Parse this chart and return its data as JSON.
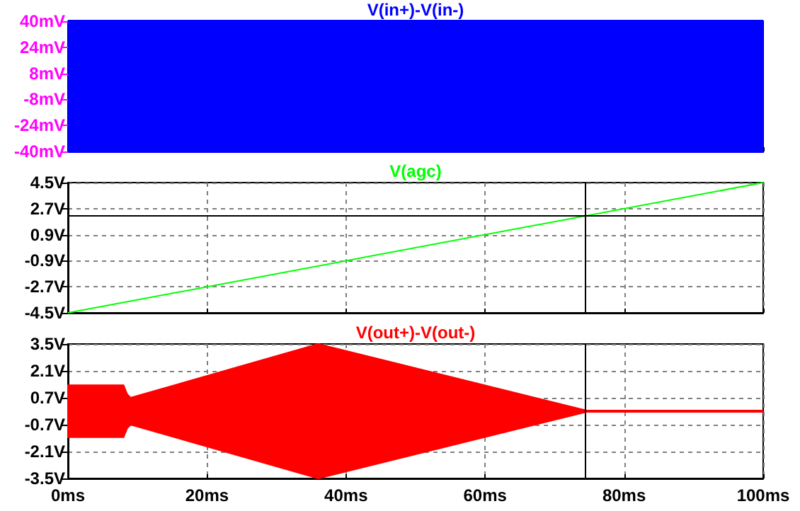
{
  "chart_data": [
    {
      "type": "area",
      "title": "V(in+)-V(in-)",
      "x": [
        0,
        100
      ],
      "series": [
        {
          "color": "#0000ff",
          "values": [
            40,
            40
          ]
        },
        {
          "color": "#0000ff",
          "values": [
            -40,
            -40
          ]
        }
      ],
      "xlim": [
        0,
        100
      ],
      "xticks": [
        {
          "value": 0,
          "label": null
        },
        {
          "value": 20,
          "label": null
        },
        {
          "value": 40,
          "label": null
        },
        {
          "value": 60,
          "label": null
        },
        {
          "value": 80,
          "label": null
        },
        {
          "value": 100,
          "label": null
        }
      ],
      "ylim": [
        -40,
        40
      ],
      "yticks": [
        {
          "value": 40,
          "label": "40mV"
        },
        {
          "value": 24,
          "label": "24mV"
        },
        {
          "value": 8,
          "label": "8mV"
        },
        {
          "value": -8,
          "label": "-8mV"
        },
        {
          "value": -24,
          "label": "-24mV"
        },
        {
          "value": -40,
          "label": "-40mV"
        }
      ],
      "tick_labels": "y",
      "grid": false
    },
    {
      "type": "line",
      "title": "V(agc)",
      "x": [
        0,
        100
      ],
      "series": [
        {
          "color": "#00ff00",
          "values": [
            -4.5,
            4.5
          ]
        }
      ],
      "xlim": [
        0,
        100
      ],
      "xticks": [
        {
          "value": 0,
          "label": null
        },
        {
          "value": 20,
          "label": null
        },
        {
          "value": 40,
          "label": null
        },
        {
          "value": 60,
          "label": null
        },
        {
          "value": 80,
          "label": null
        },
        {
          "value": 100,
          "label": null
        }
      ],
      "ylim": [
        -4.5,
        4.5
      ],
      "yticks": [
        {
          "value": 4.5,
          "label": "4.5V"
        },
        {
          "value": 2.7,
          "label": "2.7V"
        },
        {
          "value": 0.9,
          "label": "0.9V"
        },
        {
          "value": -0.9,
          "label": "-0.9V"
        },
        {
          "value": -2.7,
          "label": "-2.7V"
        },
        {
          "value": -4.5,
          "label": "-4.5V"
        }
      ],
      "ref_lines": [
        {
          "axis": "x",
          "value": 74.3,
          "color": "#000000"
        },
        {
          "axis": "y",
          "value": 2.2,
          "color": "#000000"
        }
      ],
      "tick_labels": "y",
      "grid": true
    },
    {
      "type": "line",
      "title": "V(out+)-V(out-)",
      "x": [
        0,
        8,
        8.5,
        9,
        36,
        75,
        100
      ],
      "series": [
        {
          "color": "#ff0000",
          "values": [
            0,
            0,
            0,
            0,
            0,
            0,
            0
          ],
          "upper": [
            1.35,
            1.35,
            0.9,
            0.7,
            3.5,
            0,
            0
          ],
          "lower": [
            -1.35,
            -1.35,
            -0.9,
            -0.7,
            -3.5,
            0,
            0
          ]
        }
      ],
      "xlim": [
        0,
        100
      ],
      "xticks": [
        {
          "value": 0,
          "label": "0ms"
        },
        {
          "value": 20,
          "label": "20ms"
        },
        {
          "value": 40,
          "label": "40ms"
        },
        {
          "value": 60,
          "label": "60ms"
        },
        {
          "value": 80,
          "label": "80ms"
        },
        {
          "value": 100,
          "label": "100ms"
        }
      ],
      "ylim": [
        -3.5,
        3.5
      ],
      "yticks": [
        {
          "value": 3.5,
          "label": "3.5V"
        },
        {
          "value": 2.1,
          "label": "2.1V"
        },
        {
          "value": 0.7,
          "label": "0.7V"
        },
        {
          "value": -0.7,
          "label": "-0.7V"
        },
        {
          "value": -2.1,
          "label": "-2.1V"
        },
        {
          "value": -3.5,
          "label": "-3.5V"
        }
      ],
      "ref_lines": [
        {
          "axis": "x",
          "value": 74.3,
          "color": "#000000"
        }
      ],
      "grid": true
    }
  ]
}
